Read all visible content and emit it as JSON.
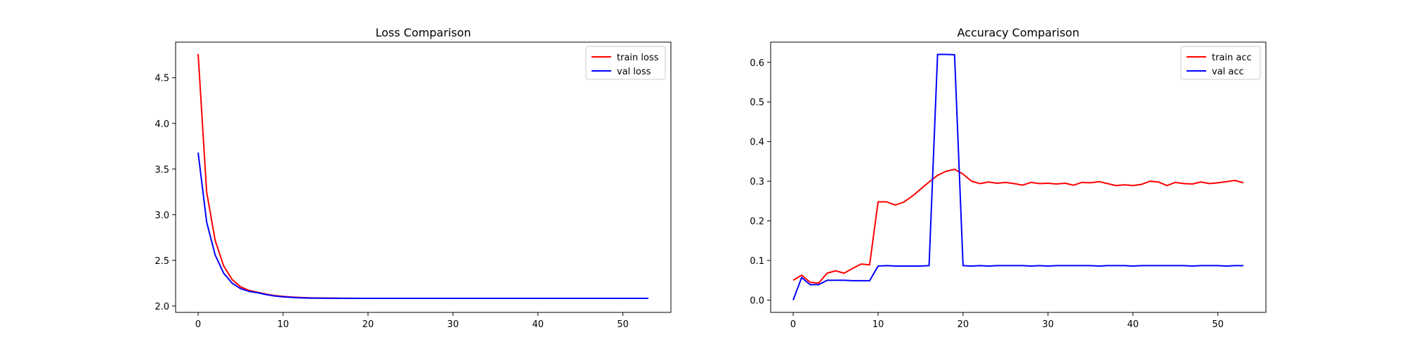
{
  "chart_data": [
    {
      "type": "line",
      "title": "Loss Comparison",
      "xlabel": "",
      "ylabel": "",
      "xlim": [
        -2.65,
        55.65
      ],
      "ylim": [
        1.93,
        4.89
      ],
      "xticks": [
        0,
        10,
        20,
        30,
        40,
        50
      ],
      "yticks": [
        2.0,
        2.5,
        3.0,
        3.5,
        4.0,
        4.5
      ],
      "tick_format": 1,
      "grid": false,
      "legend": "top-right",
      "series": [
        {
          "name": "train loss",
          "color": "#ff0000",
          "x": [
            0,
            1,
            2,
            3,
            4,
            5,
            6,
            7,
            8,
            9,
            10,
            11,
            12,
            13,
            14,
            15,
            16,
            17,
            18,
            19,
            20,
            21,
            22,
            23,
            24,
            25,
            26,
            27,
            28,
            29,
            30,
            31,
            32,
            33,
            34,
            35,
            36,
            37,
            38,
            39,
            40,
            41,
            42,
            43,
            44,
            45,
            46,
            47,
            48,
            49,
            50,
            51,
            52,
            53
          ],
          "y": [
            4.76,
            3.25,
            2.72,
            2.44,
            2.29,
            2.21,
            2.17,
            2.15,
            2.13,
            2.115,
            2.105,
            2.098,
            2.093,
            2.09,
            2.088,
            2.087,
            2.086,
            2.085,
            2.085,
            2.084,
            2.084,
            2.084,
            2.084,
            2.084,
            2.084,
            2.084,
            2.084,
            2.084,
            2.084,
            2.084,
            2.084,
            2.084,
            2.084,
            2.084,
            2.084,
            2.084,
            2.084,
            2.084,
            2.084,
            2.084,
            2.084,
            2.084,
            2.084,
            2.084,
            2.084,
            2.084,
            2.084,
            2.084,
            2.084,
            2.084,
            2.084,
            2.084,
            2.084,
            2.084
          ]
        },
        {
          "name": "val loss",
          "color": "#0000ff",
          "x": [
            0,
            1,
            2,
            3,
            4,
            5,
            6,
            7,
            8,
            9,
            10,
            11,
            12,
            13,
            14,
            15,
            16,
            17,
            18,
            19,
            20,
            21,
            22,
            23,
            24,
            25,
            26,
            27,
            28,
            29,
            30,
            31,
            32,
            33,
            34,
            35,
            36,
            37,
            38,
            39,
            40,
            41,
            42,
            43,
            44,
            45,
            46,
            47,
            48,
            49,
            50,
            51,
            52,
            53
          ],
          "y": [
            3.68,
            2.92,
            2.56,
            2.36,
            2.25,
            2.19,
            2.16,
            2.145,
            2.125,
            2.11,
            2.1,
            2.094,
            2.09,
            2.087,
            2.086,
            2.085,
            2.085,
            2.084,
            2.084,
            2.084,
            2.084,
            2.084,
            2.084,
            2.084,
            2.084,
            2.084,
            2.084,
            2.084,
            2.084,
            2.084,
            2.084,
            2.084,
            2.084,
            2.084,
            2.084,
            2.084,
            2.084,
            2.084,
            2.084,
            2.084,
            2.084,
            2.084,
            2.084,
            2.084,
            2.084,
            2.084,
            2.084,
            2.084,
            2.084,
            2.084,
            2.084,
            2.084,
            2.084,
            2.084
          ]
        }
      ]
    },
    {
      "type": "line",
      "title": "Accuracy Comparison",
      "xlabel": "",
      "ylabel": "",
      "xlim": [
        -2.65,
        55.65
      ],
      "ylim": [
        -0.031,
        0.651
      ],
      "xticks": [
        0,
        10,
        20,
        30,
        40,
        50
      ],
      "yticks": [
        0.0,
        0.1,
        0.2,
        0.3,
        0.4,
        0.5,
        0.6
      ],
      "tick_format": 1,
      "grid": false,
      "legend": "top-right",
      "series": [
        {
          "name": "train acc",
          "color": "#ff0000",
          "x": [
            0,
            1,
            2,
            3,
            4,
            5,
            6,
            7,
            8,
            9,
            10,
            11,
            12,
            13,
            14,
            15,
            16,
            17,
            18,
            19,
            20,
            21,
            22,
            23,
            24,
            25,
            26,
            27,
            28,
            29,
            30,
            31,
            32,
            33,
            34,
            35,
            36,
            37,
            38,
            39,
            40,
            41,
            42,
            43,
            44,
            45,
            46,
            47,
            48,
            49,
            50,
            51,
            52,
            53
          ],
          "y": [
            0.05,
            0.063,
            0.045,
            0.043,
            0.068,
            0.074,
            0.068,
            0.08,
            0.091,
            0.089,
            0.248,
            0.248,
            0.24,
            0.247,
            0.262,
            0.28,
            0.298,
            0.315,
            0.325,
            0.33,
            0.318,
            0.3,
            0.294,
            0.298,
            0.295,
            0.297,
            0.294,
            0.29,
            0.297,
            0.294,
            0.295,
            0.293,
            0.295,
            0.29,
            0.297,
            0.296,
            0.299,
            0.294,
            0.289,
            0.291,
            0.289,
            0.292,
            0.3,
            0.298,
            0.289,
            0.297,
            0.294,
            0.293,
            0.298,
            0.294,
            0.296,
            0.299,
            0.302,
            0.296
          ]
        },
        {
          "name": "val acc",
          "color": "#0000ff",
          "x": [
            0,
            1,
            2,
            3,
            4,
            5,
            6,
            7,
            8,
            9,
            10,
            11,
            12,
            13,
            14,
            15,
            16,
            17,
            18,
            19,
            20,
            21,
            22,
            23,
            24,
            25,
            26,
            27,
            28,
            29,
            30,
            31,
            32,
            33,
            34,
            35,
            36,
            37,
            38,
            39,
            40,
            41,
            42,
            43,
            44,
            45,
            46,
            47,
            48,
            49,
            50,
            51,
            52,
            53
          ],
          "y": [
            0.0,
            0.057,
            0.039,
            0.039,
            0.05,
            0.05,
            0.05,
            0.049,
            0.049,
            0.049,
            0.086,
            0.087,
            0.086,
            0.086,
            0.086,
            0.086,
            0.087,
            0.62,
            0.62,
            0.619,
            0.087,
            0.086,
            0.087,
            0.086,
            0.087,
            0.087,
            0.087,
            0.087,
            0.086,
            0.087,
            0.086,
            0.087,
            0.087,
            0.087,
            0.087,
            0.087,
            0.086,
            0.087,
            0.087,
            0.087,
            0.086,
            0.087,
            0.087,
            0.087,
            0.087,
            0.087,
            0.087,
            0.086,
            0.087,
            0.087,
            0.087,
            0.086,
            0.087,
            0.087
          ]
        }
      ]
    }
  ]
}
